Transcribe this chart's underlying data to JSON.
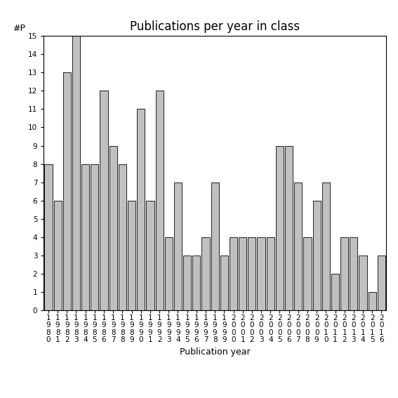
{
  "years": [
    "1980",
    "1981",
    "1982",
    "1983",
    "1984",
    "1985",
    "1986",
    "1987",
    "1988",
    "1989",
    "1990",
    "1991",
    "1992",
    "1993",
    "1994",
    "1995",
    "1996",
    "1997",
    "1998",
    "1999",
    "2000",
    "2001",
    "2002",
    "2003",
    "2004",
    "2005",
    "2006",
    "2007",
    "2008",
    "2009",
    "2010",
    "2011",
    "2012",
    "2013",
    "2014",
    "2015",
    "2016"
  ],
  "values": [
    8,
    6,
    13,
    15,
    8,
    8,
    12,
    9,
    8,
    6,
    11,
    6,
    12,
    4,
    7,
    3,
    3,
    4,
    7,
    3,
    4,
    4,
    4,
    4,
    4,
    9,
    9,
    7,
    4,
    6,
    7,
    2,
    4,
    4,
    3,
    1,
    3
  ],
  "bar_color": "#c0c0c0",
  "bar_edge_color": "#000000",
  "title": "Publications per year in class",
  "xlabel": "Publication year",
  "ylabel": "#P",
  "ylim": [
    0,
    15
  ],
  "yticks": [
    0,
    1,
    2,
    3,
    4,
    5,
    6,
    7,
    8,
    9,
    10,
    11,
    12,
    13,
    14,
    15
  ],
  "bg_color": "#ffffff",
  "title_fontsize": 12,
  "label_fontsize": 9,
  "tick_fontsize": 7.5
}
